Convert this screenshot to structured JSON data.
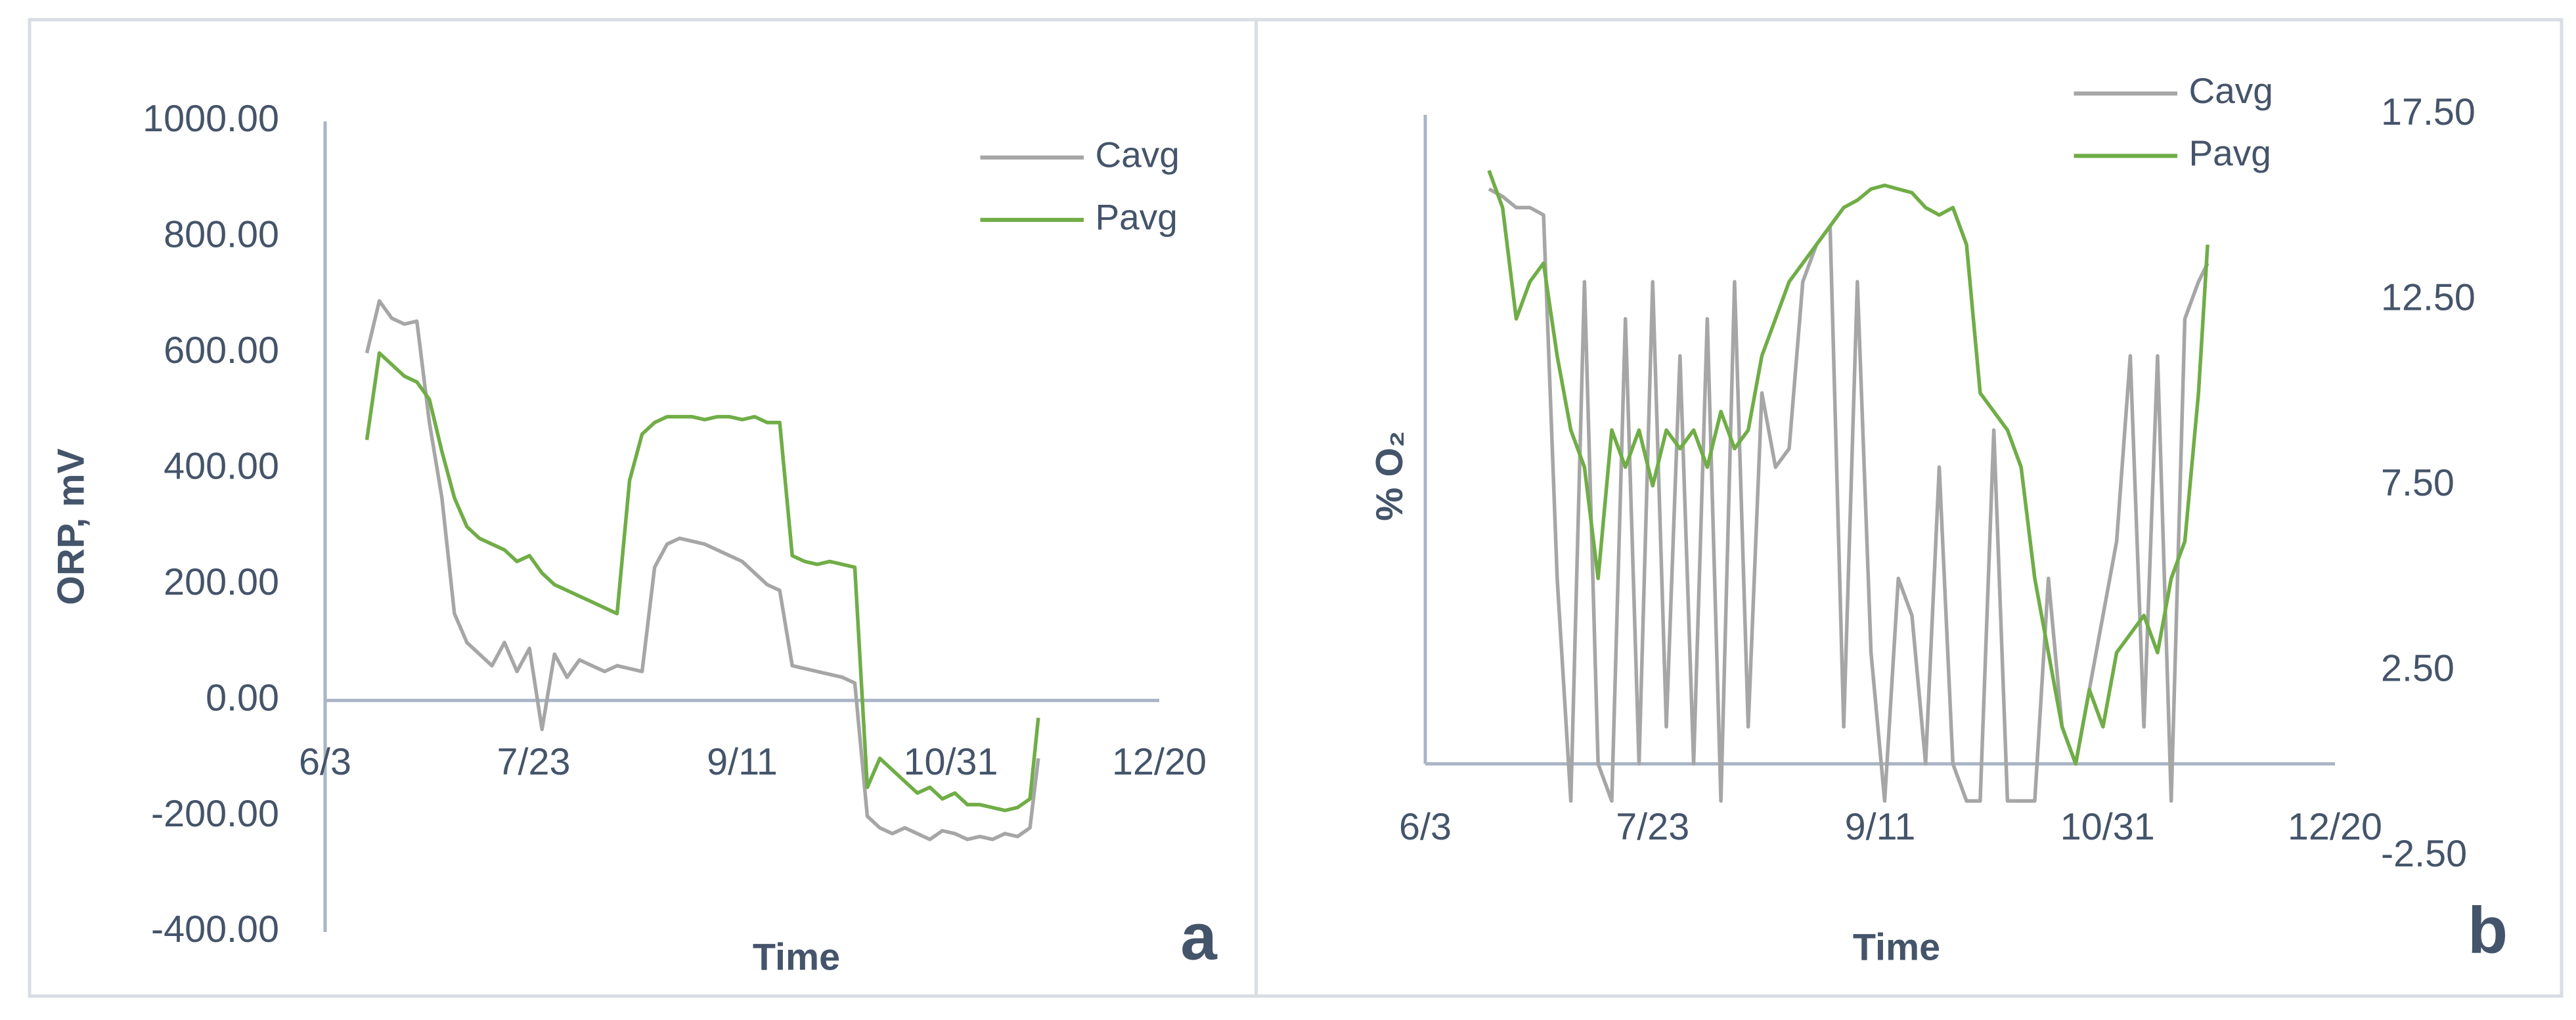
{
  "chart_data": [
    {
      "type": "line",
      "panel_label": "a",
      "x_label": "Time",
      "y_label": "ORP, mV",
      "legend": "top-right",
      "x": [
        "6/13",
        "6/16",
        "6/19",
        "6/22",
        "6/25",
        "6/28",
        "7/1",
        "7/4",
        "7/7",
        "7/10",
        "7/13",
        "7/16",
        "7/19",
        "7/22",
        "7/25",
        "7/28",
        "7/31",
        "8/3",
        "8/6",
        "8/9",
        "8/12",
        "8/15",
        "8/18",
        "8/21",
        "8/24",
        "8/27",
        "8/30",
        "9/2",
        "9/5",
        "9/8",
        "9/11",
        "9/14",
        "9/17",
        "9/20",
        "9/23",
        "9/26",
        "9/29",
        "10/2",
        "10/5",
        "10/8",
        "10/11",
        "10/14",
        "10/17",
        "10/20",
        "10/23",
        "10/26",
        "10/29",
        "11/1",
        "11/4",
        "11/7",
        "11/10",
        "11/13",
        "11/16",
        "11/19",
        "11/21"
      ],
      "series": [
        {
          "name": "Cavg",
          "color": "#a6a6a6",
          "values": [
            600,
            690,
            660,
            650,
            655,
            480,
            350,
            150,
            100,
            80,
            60,
            100,
            50,
            90,
            -50,
            80,
            40,
            70,
            60,
            50,
            60,
            55,
            50,
            230,
            270,
            280,
            275,
            270,
            260,
            250,
            240,
            220,
            200,
            190,
            60,
            55,
            50,
            45,
            40,
            30,
            -200,
            -220,
            -230,
            -220,
            -230,
            -240,
            -225,
            -230,
            -240,
            -235,
            -240,
            -230,
            -235,
            -220,
            -100
          ]
        },
        {
          "name": "Pavg",
          "color": "#70ad47",
          "values": [
            450,
            600,
            580,
            560,
            550,
            520,
            430,
            350,
            300,
            280,
            270,
            260,
            240,
            250,
            220,
            200,
            190,
            180,
            170,
            160,
            150,
            380,
            460,
            480,
            490,
            490,
            490,
            485,
            490,
            490,
            485,
            490,
            480,
            480,
            250,
            240,
            235,
            240,
            235,
            230,
            -150,
            -100,
            -120,
            -140,
            -160,
            -150,
            -170,
            -160,
            -180,
            -180,
            -185,
            -190,
            -185,
            -170,
            -30
          ]
        }
      ],
      "xlim": [
        "6/3",
        "12/20"
      ],
      "xticks": [
        "6/3",
        "7/23",
        "9/11",
        "10/31",
        "12/20"
      ],
      "ylim": [
        -400,
        1000
      ],
      "yticks": [
        {
          "value": -400,
          "label": "-400.00"
        },
        {
          "value": -200,
          "label": "-200.00"
        },
        {
          "value": 0,
          "label": "0.00"
        },
        {
          "value": 200,
          "label": "200.00"
        },
        {
          "value": 400,
          "label": "400.00"
        },
        {
          "value": 600,
          "label": "600.00"
        },
        {
          "value": 800,
          "label": "800.00"
        },
        {
          "value": 1000,
          "label": "1000.00"
        }
      ]
    },
    {
      "type": "line",
      "panel_label": "b",
      "x_label": "Time",
      "y_label": "% O₂",
      "legend": "top-right",
      "x": [
        "6/17",
        "6/20",
        "6/23",
        "6/26",
        "6/29",
        "7/2",
        "7/5",
        "7/8",
        "7/11",
        "7/14",
        "7/17",
        "7/20",
        "7/23",
        "7/26",
        "7/29",
        "8/1",
        "8/4",
        "8/7",
        "8/10",
        "8/13",
        "8/16",
        "8/19",
        "8/22",
        "8/25",
        "8/28",
        "8/31",
        "9/3",
        "9/6",
        "9/9",
        "9/12",
        "9/15",
        "9/18",
        "9/21",
        "9/24",
        "9/27",
        "9/30",
        "10/3",
        "10/6",
        "10/9",
        "10/12",
        "10/15",
        "10/18",
        "10/21",
        "10/24",
        "10/27",
        "10/30",
        "11/2",
        "11/5",
        "11/8",
        "11/11",
        "11/14",
        "11/17",
        "11/20",
        "11/22"
      ],
      "series": [
        {
          "name": "Cavg",
          "color": "#a6a6a6",
          "axis": "y2",
          "values": [
            15.5,
            15.3,
            15,
            15,
            14.8,
            5,
            -1,
            13,
            0,
            -1,
            12,
            0,
            13,
            1,
            11,
            0,
            12,
            -1,
            13,
            1,
            10,
            8,
            8.5,
            13,
            14,
            14.5,
            1,
            13,
            3,
            -1,
            5,
            4,
            0,
            8,
            0,
            -1,
            -1,
            9,
            -1,
            -1,
            -1,
            5,
            1,
            0,
            2,
            4,
            6,
            11,
            1,
            11,
            -1,
            12,
            13,
            13.5
          ]
        },
        {
          "name": "Pavg",
          "color": "#70ad47",
          "axis": "y2",
          "values": [
            16,
            15,
            12,
            13,
            13.5,
            11,
            9,
            8,
            5,
            9,
            8,
            9,
            7.5,
            9,
            8.5,
            9,
            8,
            9.5,
            8.5,
            9,
            11,
            12,
            13,
            13.5,
            14,
            14.5,
            15,
            15.2,
            15.5,
            15.6,
            15.5,
            15.4,
            15,
            14.8,
            15,
            14,
            10,
            9.5,
            9,
            8,
            5,
            3,
            1,
            0,
            2,
            1,
            3,
            3.5,
            4,
            3,
            5,
            6,
            10,
            14
          ]
        }
      ],
      "xlim": [
        "6/3",
        "12/20"
      ],
      "xticks": [
        "6/3",
        "7/23",
        "9/11",
        "10/31",
        "12/20"
      ],
      "y2lim": [
        -2.5,
        17.5
      ],
      "y2ticks": [
        {
          "value": -2.5,
          "label": "-2.50"
        },
        {
          "value": 2.5,
          "label": "2.50"
        },
        {
          "value": 7.5,
          "label": "7.50"
        },
        {
          "value": 12.5,
          "label": "12.50"
        },
        {
          "value": 17.5,
          "label": "17.50"
        }
      ]
    }
  ]
}
